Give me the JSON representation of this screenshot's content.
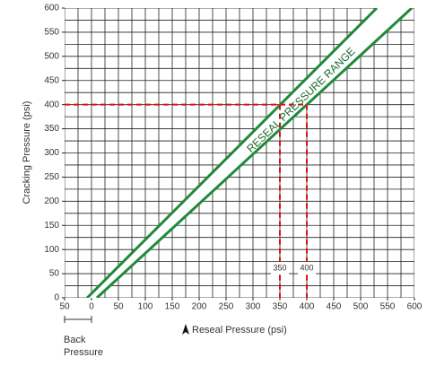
{
  "chart_data": {
    "type": "line",
    "x_label": "Reseal Pressure (psi)",
    "y_label": "Cracking Pressure (psi)",
    "annotation": "RESEAL PRESSURE RANGE",
    "back_pressure_label": [
      "Back",
      "Pressure"
    ],
    "series": [
      {
        "color": "#1f8a3a",
        "x": [
          -8,
          530
        ],
        "values": [
          0,
          600
        ]
      },
      {
        "color": "#1f8a3a",
        "x": [
          10,
          595
        ],
        "values": [
          0,
          600
        ]
      }
    ],
    "reference": {
      "color": "#e01010",
      "y": 400,
      "x": [
        350,
        400
      ]
    },
    "xlim": [
      -50,
      600
    ],
    "ylim": [
      0,
      600
    ],
    "xticks": [
      {
        "value": -50,
        "label": "50"
      },
      0,
      50,
      100,
      150,
      200,
      250,
      300,
      350,
      400,
      450,
      500,
      550,
      600
    ],
    "yticks": [
      0,
      50,
      100,
      150,
      200,
      250,
      300,
      350,
      400,
      450,
      500,
      550,
      600
    ],
    "grid": true,
    "grid_step": 25
  }
}
